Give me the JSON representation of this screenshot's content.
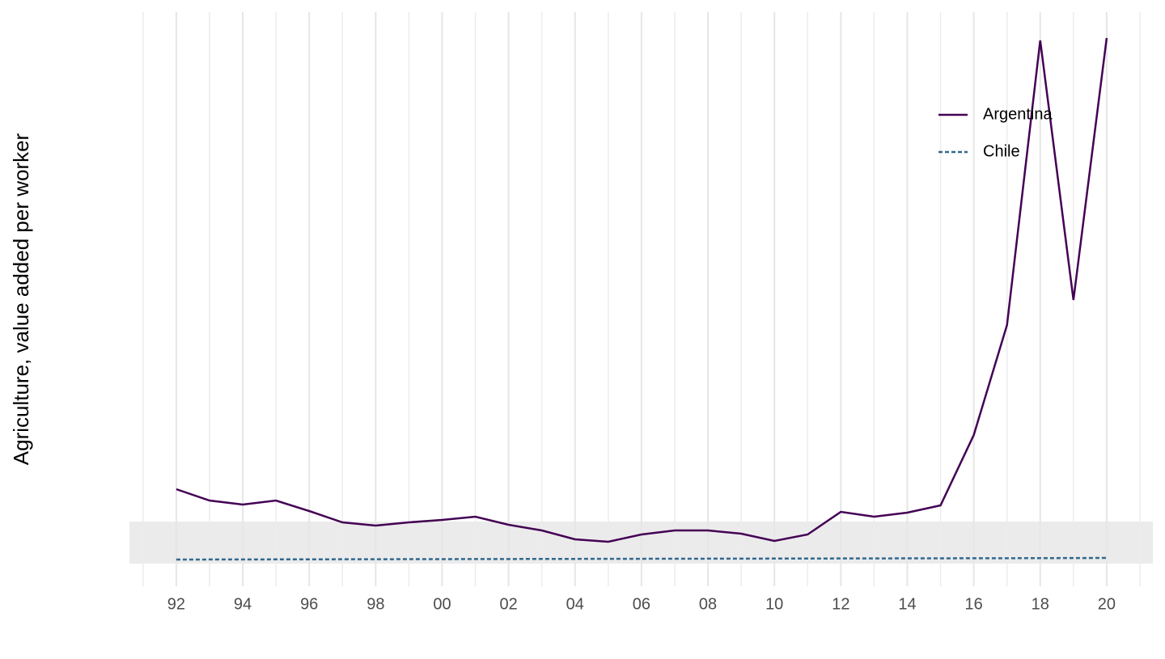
{
  "chart_data": {
    "type": "line",
    "y_label": "Agriculture, value added per worker",
    "x": [
      1992,
      1993,
      1994,
      1995,
      1996,
      1997,
      1998,
      1999,
      2000,
      2001,
      2002,
      2003,
      2004,
      2005,
      2006,
      2007,
      2008,
      2009,
      2010,
      2011,
      2012,
      2013,
      2014,
      2015,
      2016,
      2017,
      2018,
      2019,
      2020
    ],
    "series": [
      {
        "name": "Argentina",
        "color": "#440154",
        "dash": "solid",
        "values": [
          13800,
          11700,
          10950,
          11700,
          9750,
          7650,
          7050,
          7650,
          8100,
          8700,
          7200,
          6150,
          4500,
          4050,
          5400,
          6150,
          6150,
          5550,
          4200,
          5400,
          9600,
          8700,
          9450,
          10800,
          23850,
          44250,
          97050,
          48900,
          97500
        ]
      },
      {
        "name": "Chile",
        "color": "#31688e",
        "dash": "dotted",
        "values": [
          750,
          760,
          770,
          780,
          790,
          800,
          810,
          820,
          830,
          840,
          850,
          860,
          870,
          880,
          890,
          900,
          910,
          920,
          930,
          940,
          950,
          960,
          970,
          980,
          990,
          1000,
          1010,
          1030,
          1050
        ]
      }
    ],
    "xlim": [
      1990.59,
      2021.39
    ],
    "xticks": [
      {
        "value": 1992,
        "label": "92"
      },
      {
        "value": 1994,
        "label": "94"
      },
      {
        "value": 1996,
        "label": "96"
      },
      {
        "value": 1998,
        "label": "98"
      },
      {
        "value": 2000,
        "label": "00"
      },
      {
        "value": 2002,
        "label": "02"
      },
      {
        "value": 2004,
        "label": "04"
      },
      {
        "value": 2006,
        "label": "06"
      },
      {
        "value": 2008,
        "label": "08"
      },
      {
        "value": 2010,
        "label": "10"
      },
      {
        "value": 2012,
        "label": "12"
      },
      {
        "value": 2014,
        "label": "14"
      },
      {
        "value": 2016,
        "label": "16"
      },
      {
        "value": 2018,
        "label": "18"
      },
      {
        "value": 2020,
        "label": "20"
      }
    ],
    "xminor_ticks": [
      1991,
      1993,
      1995,
      1997,
      1999,
      2001,
      2003,
      2005,
      2007,
      2009,
      2011,
      2013,
      2015,
      2017,
      2019,
      2021
    ],
    "ylim": [
      -4200,
      102300
    ],
    "grid": true,
    "legend": "top-right"
  }
}
